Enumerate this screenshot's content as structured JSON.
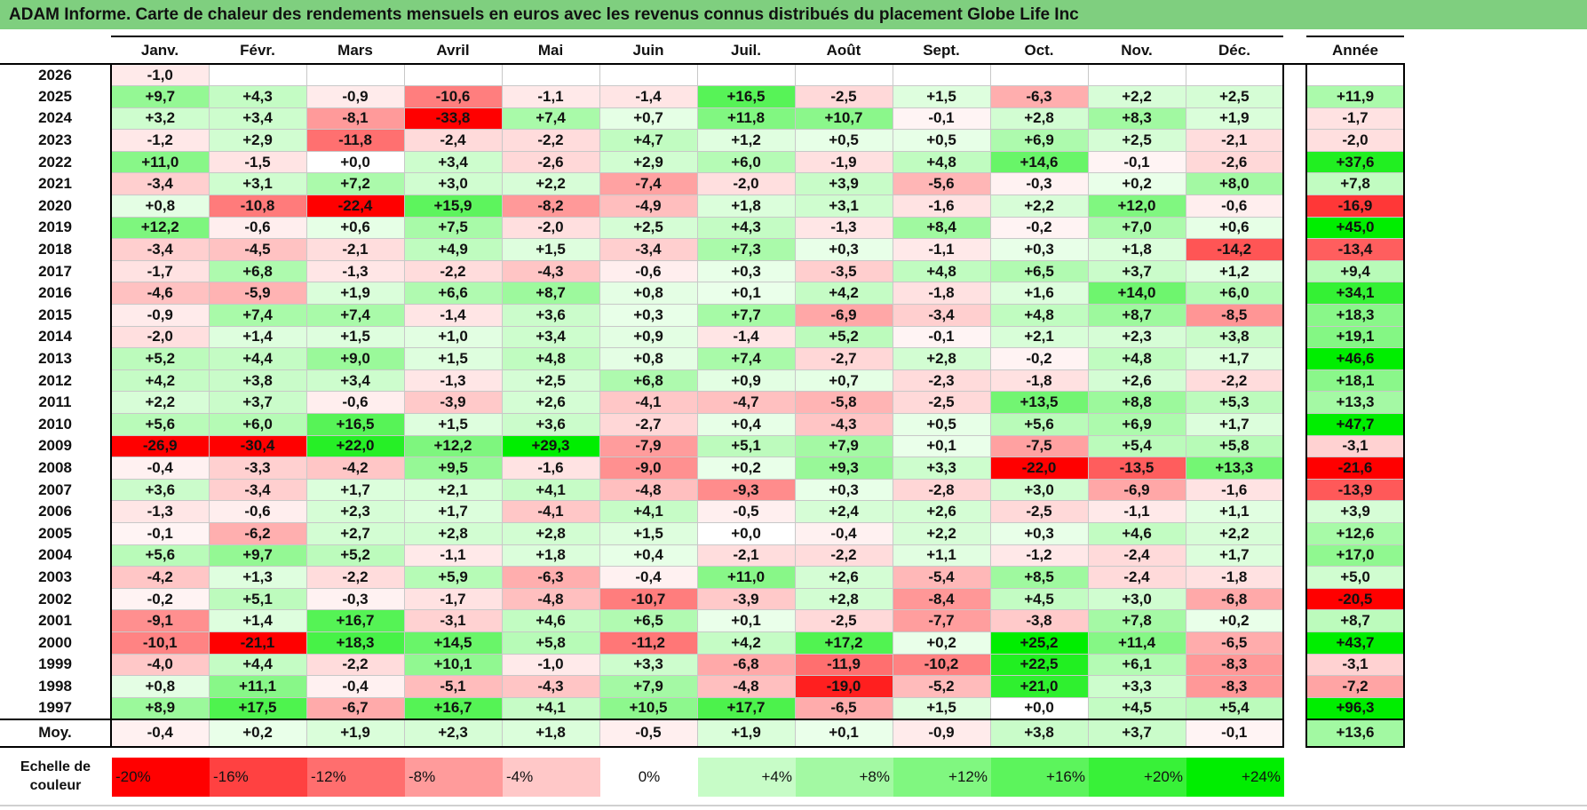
{
  "title": "ADAM Informe. Carte de chaleur des rendements mensuels en euros avec les revenus connus distribués du placement Globe Life Inc",
  "chart_data": {
    "type": "heatmap",
    "title": "ADAM Informe. Carte de chaleur des rendements mensuels en euros avec les revenus connus distribués du placement Globe Life Inc",
    "months": [
      "Janv.",
      "Févr.",
      "Mars",
      "Avril",
      "Mai",
      "Juin",
      "Juil.",
      "Août",
      "Sept.",
      "Oct.",
      "Nov.",
      "Déc."
    ],
    "year_header": "Année",
    "rows": [
      {
        "year": "2026",
        "values": [
          "-1,0",
          "",
          "",
          "",
          "",
          "",
          "",
          "",
          "",
          "",
          "",
          ""
        ],
        "annual": ""
      },
      {
        "year": "2025",
        "values": [
          "+9,7",
          "+4,3",
          "-0,9",
          "-10,6",
          "-1,1",
          "-1,4",
          "+16,5",
          "-2,5",
          "+1,5",
          "-6,3",
          "+2,2",
          "+2,5"
        ],
        "annual": "+11,9"
      },
      {
        "year": "2024",
        "values": [
          "+3,2",
          "+3,4",
          "-8,1",
          "-33,8",
          "+7,4",
          "+0,7",
          "+11,8",
          "+10,7",
          "-0,1",
          "+2,8",
          "+8,3",
          "+1,9"
        ],
        "annual": "-1,7"
      },
      {
        "year": "2023",
        "values": [
          "-1,2",
          "+2,9",
          "-11,8",
          "-2,4",
          "-2,2",
          "+4,7",
          "+1,2",
          "+0,5",
          "+0,5",
          "+6,9",
          "+2,5",
          "-2,1"
        ],
        "annual": "-2,0"
      },
      {
        "year": "2022",
        "values": [
          "+11,0",
          "-1,5",
          "+0,0",
          "+3,4",
          "-2,6",
          "+2,9",
          "+6,0",
          "-1,9",
          "+4,8",
          "+14,6",
          "-0,1",
          "-2,6"
        ],
        "annual": "+37,6"
      },
      {
        "year": "2021",
        "values": [
          "-3,4",
          "+3,1",
          "+7,2",
          "+3,0",
          "+2,2",
          "-7,4",
          "-2,0",
          "+3,9",
          "-5,6",
          "-0,3",
          "+0,2",
          "+8,0"
        ],
        "annual": "+7,8"
      },
      {
        "year": "2020",
        "values": [
          "+0,8",
          "-10,8",
          "-22,4",
          "+15,9",
          "-8,2",
          "-4,9",
          "+1,8",
          "+3,1",
          "-1,6",
          "+2,2",
          "+12,0",
          "-0,6"
        ],
        "annual": "-16,9"
      },
      {
        "year": "2019",
        "values": [
          "+12,2",
          "-0,6",
          "+0,6",
          "+7,5",
          "-2,0",
          "+2,5",
          "+4,3",
          "-1,3",
          "+8,4",
          "-0,2",
          "+7,0",
          "+0,6"
        ],
        "annual": "+45,0"
      },
      {
        "year": "2018",
        "values": [
          "-3,4",
          "-4,5",
          "-2,1",
          "+4,9",
          "+1,5",
          "-3,4",
          "+7,3",
          "+0,3",
          "-1,1",
          "+0,3",
          "+1,8",
          "-14,2"
        ],
        "annual": "-13,4"
      },
      {
        "year": "2017",
        "values": [
          "-1,7",
          "+6,8",
          "-1,3",
          "-2,2",
          "-4,3",
          "-0,6",
          "+0,3",
          "-3,5",
          "+4,8",
          "+6,5",
          "+3,7",
          "+1,2"
        ],
        "annual": "+9,4"
      },
      {
        "year": "2016",
        "values": [
          "-4,6",
          "-5,9",
          "+1,9",
          "+6,6",
          "+8,7",
          "+0,8",
          "+0,1",
          "+4,2",
          "-1,8",
          "+1,6",
          "+14,0",
          "+6,0"
        ],
        "annual": "+34,1"
      },
      {
        "year": "2015",
        "values": [
          "-0,9",
          "+7,4",
          "+7,4",
          "-1,4",
          "+3,6",
          "+0,3",
          "+7,7",
          "-6,9",
          "-3,4",
          "+4,8",
          "+8,7",
          "-8,5"
        ],
        "annual": "+18,3"
      },
      {
        "year": "2014",
        "values": [
          "-2,0",
          "+1,4",
          "+1,5",
          "+1,0",
          "+3,4",
          "+0,9",
          "-1,4",
          "+5,2",
          "-0,1",
          "+2,1",
          "+2,3",
          "+3,8"
        ],
        "annual": "+19,1"
      },
      {
        "year": "2013",
        "values": [
          "+5,2",
          "+4,4",
          "+9,0",
          "+1,5",
          "+4,8",
          "+0,8",
          "+7,4",
          "-2,7",
          "+2,8",
          "-0,2",
          "+4,8",
          "+1,7"
        ],
        "annual": "+46,6"
      },
      {
        "year": "2012",
        "values": [
          "+4,2",
          "+3,8",
          "+3,4",
          "-1,3",
          "+2,5",
          "+6,8",
          "+0,9",
          "+0,7",
          "-2,3",
          "-1,8",
          "+2,6",
          "-2,2"
        ],
        "annual": "+18,1"
      },
      {
        "year": "2011",
        "values": [
          "+2,2",
          "+3,7",
          "-0,6",
          "-3,9",
          "+2,6",
          "-4,1",
          "-4,7",
          "-5,8",
          "-2,5",
          "+13,5",
          "+8,8",
          "+5,3"
        ],
        "annual": "+13,3"
      },
      {
        "year": "2010",
        "values": [
          "+5,6",
          "+6,0",
          "+16,5",
          "+1,5",
          "+3,6",
          "-2,7",
          "+0,4",
          "-4,3",
          "+0,5",
          "+5,6",
          "+6,9",
          "+1,7"
        ],
        "annual": "+47,7"
      },
      {
        "year": "2009",
        "values": [
          "-26,9",
          "-30,4",
          "+22,0",
          "+12,2",
          "+29,3",
          "-7,9",
          "+5,1",
          "+7,9",
          "+0,1",
          "-7,5",
          "+5,4",
          "+5,8"
        ],
        "annual": "-3,1"
      },
      {
        "year": "2008",
        "values": [
          "-0,4",
          "-3,3",
          "-4,2",
          "+9,5",
          "-1,6",
          "-9,0",
          "+0,2",
          "+9,3",
          "+3,3",
          "-22,0",
          "-13,5",
          "+13,3"
        ],
        "annual": "-21,6"
      },
      {
        "year": "2007",
        "values": [
          "+3,6",
          "-3,4",
          "+1,7",
          "+2,1",
          "+4,1",
          "-4,8",
          "-9,3",
          "+0,3",
          "-2,8",
          "+3,0",
          "-6,9",
          "-1,6"
        ],
        "annual": "-13,9"
      },
      {
        "year": "2006",
        "values": [
          "-1,3",
          "-0,6",
          "+2,3",
          "+1,7",
          "-4,1",
          "+4,1",
          "-0,5",
          "+2,4",
          "+2,6",
          "-2,5",
          "-1,1",
          "+1,1"
        ],
        "annual": "+3,9"
      },
      {
        "year": "2005",
        "values": [
          "-0,1",
          "-6,2",
          "+2,7",
          "+2,8",
          "+2,8",
          "+1,5",
          "+0,0",
          "-0,4",
          "+2,2",
          "+0,3",
          "+4,6",
          "+2,2"
        ],
        "annual": "+12,6"
      },
      {
        "year": "2004",
        "values": [
          "+5,6",
          "+9,7",
          "+5,2",
          "-1,1",
          "+1,8",
          "+0,4",
          "-2,1",
          "-2,2",
          "+1,1",
          "-1,2",
          "-2,4",
          "+1,7"
        ],
        "annual": "+17,0"
      },
      {
        "year": "2003",
        "values": [
          "-4,2",
          "+1,3",
          "-2,2",
          "+5,9",
          "-6,3",
          "-0,4",
          "+11,0",
          "+2,6",
          "-5,4",
          "+8,5",
          "-2,4",
          "-1,8"
        ],
        "annual": "+5,0"
      },
      {
        "year": "2002",
        "values": [
          "-0,2",
          "+5,1",
          "-0,3",
          "-1,7",
          "-4,8",
          "-10,7",
          "-3,9",
          "+2,8",
          "-8,4",
          "+4,5",
          "+3,0",
          "-6,8"
        ],
        "annual": "-20,5"
      },
      {
        "year": "2001",
        "values": [
          "-9,1",
          "+1,4",
          "+16,7",
          "-3,1",
          "+4,6",
          "+6,5",
          "+0,1",
          "-2,5",
          "-7,7",
          "-3,8",
          "+7,8",
          "+0,2"
        ],
        "annual": "+8,7"
      },
      {
        "year": "2000",
        "values": [
          "-10,1",
          "-21,1",
          "+18,3",
          "+14,5",
          "+5,8",
          "-11,2",
          "+4,2",
          "+17,2",
          "+0,2",
          "+25,2",
          "+11,4",
          "-6,5"
        ],
        "annual": "+43,7"
      },
      {
        "year": "1999",
        "values": [
          "-4,0",
          "+4,4",
          "-2,2",
          "+10,1",
          "-1,0",
          "+3,3",
          "-6,8",
          "-11,9",
          "-10,2",
          "+22,5",
          "+6,1",
          "-8,3"
        ],
        "annual": "-3,1"
      },
      {
        "year": "1998",
        "values": [
          "+0,8",
          "+11,1",
          "-0,4",
          "-5,1",
          "-4,3",
          "+7,9",
          "-4,8",
          "-19,0",
          "-5,2",
          "+21,0",
          "+3,3",
          "-8,3"
        ],
        "annual": "-7,2"
      },
      {
        "year": "1997",
        "values": [
          "+8,9",
          "+17,5",
          "-6,7",
          "+16,7",
          "+4,1",
          "+10,5",
          "+17,7",
          "-6,5",
          "+1,5",
          "+0,0",
          "+4,5",
          "+5,4"
        ],
        "annual": "+96,3"
      }
    ],
    "average": {
      "label": "Moy.",
      "values": [
        "-0,4",
        "+0,2",
        "+1,9",
        "+2,3",
        "+1,8",
        "-0,5",
        "+1,9",
        "+0,1",
        "-0,9",
        "+3,8",
        "+3,7",
        "-0,1"
      ],
      "annual": "+13,6"
    },
    "color_scale": {
      "label": "Echelle de couleur",
      "stops": [
        {
          "label": "-20%",
          "value": -20
        },
        {
          "label": "-16%",
          "value": -16
        },
        {
          "label": "-12%",
          "value": -12
        },
        {
          "label": "-8%",
          "value": -8
        },
        {
          "label": "-4%",
          "value": -4
        },
        {
          "label": "0%",
          "value": 0
        },
        {
          "label": "+4%",
          "value": 4
        },
        {
          "label": "+8%",
          "value": 8
        },
        {
          "label": "+12%",
          "value": 12
        },
        {
          "label": "+16%",
          "value": 16
        },
        {
          "label": "+20%",
          "value": 20
        },
        {
          "label": "+24%",
          "value": 24
        }
      ]
    },
    "colors": {
      "negative_max": "#ff0000",
      "neutral": "#ffffff",
      "positive_max": "#00ee00",
      "title_bg": "#7fcf7f"
    }
  }
}
